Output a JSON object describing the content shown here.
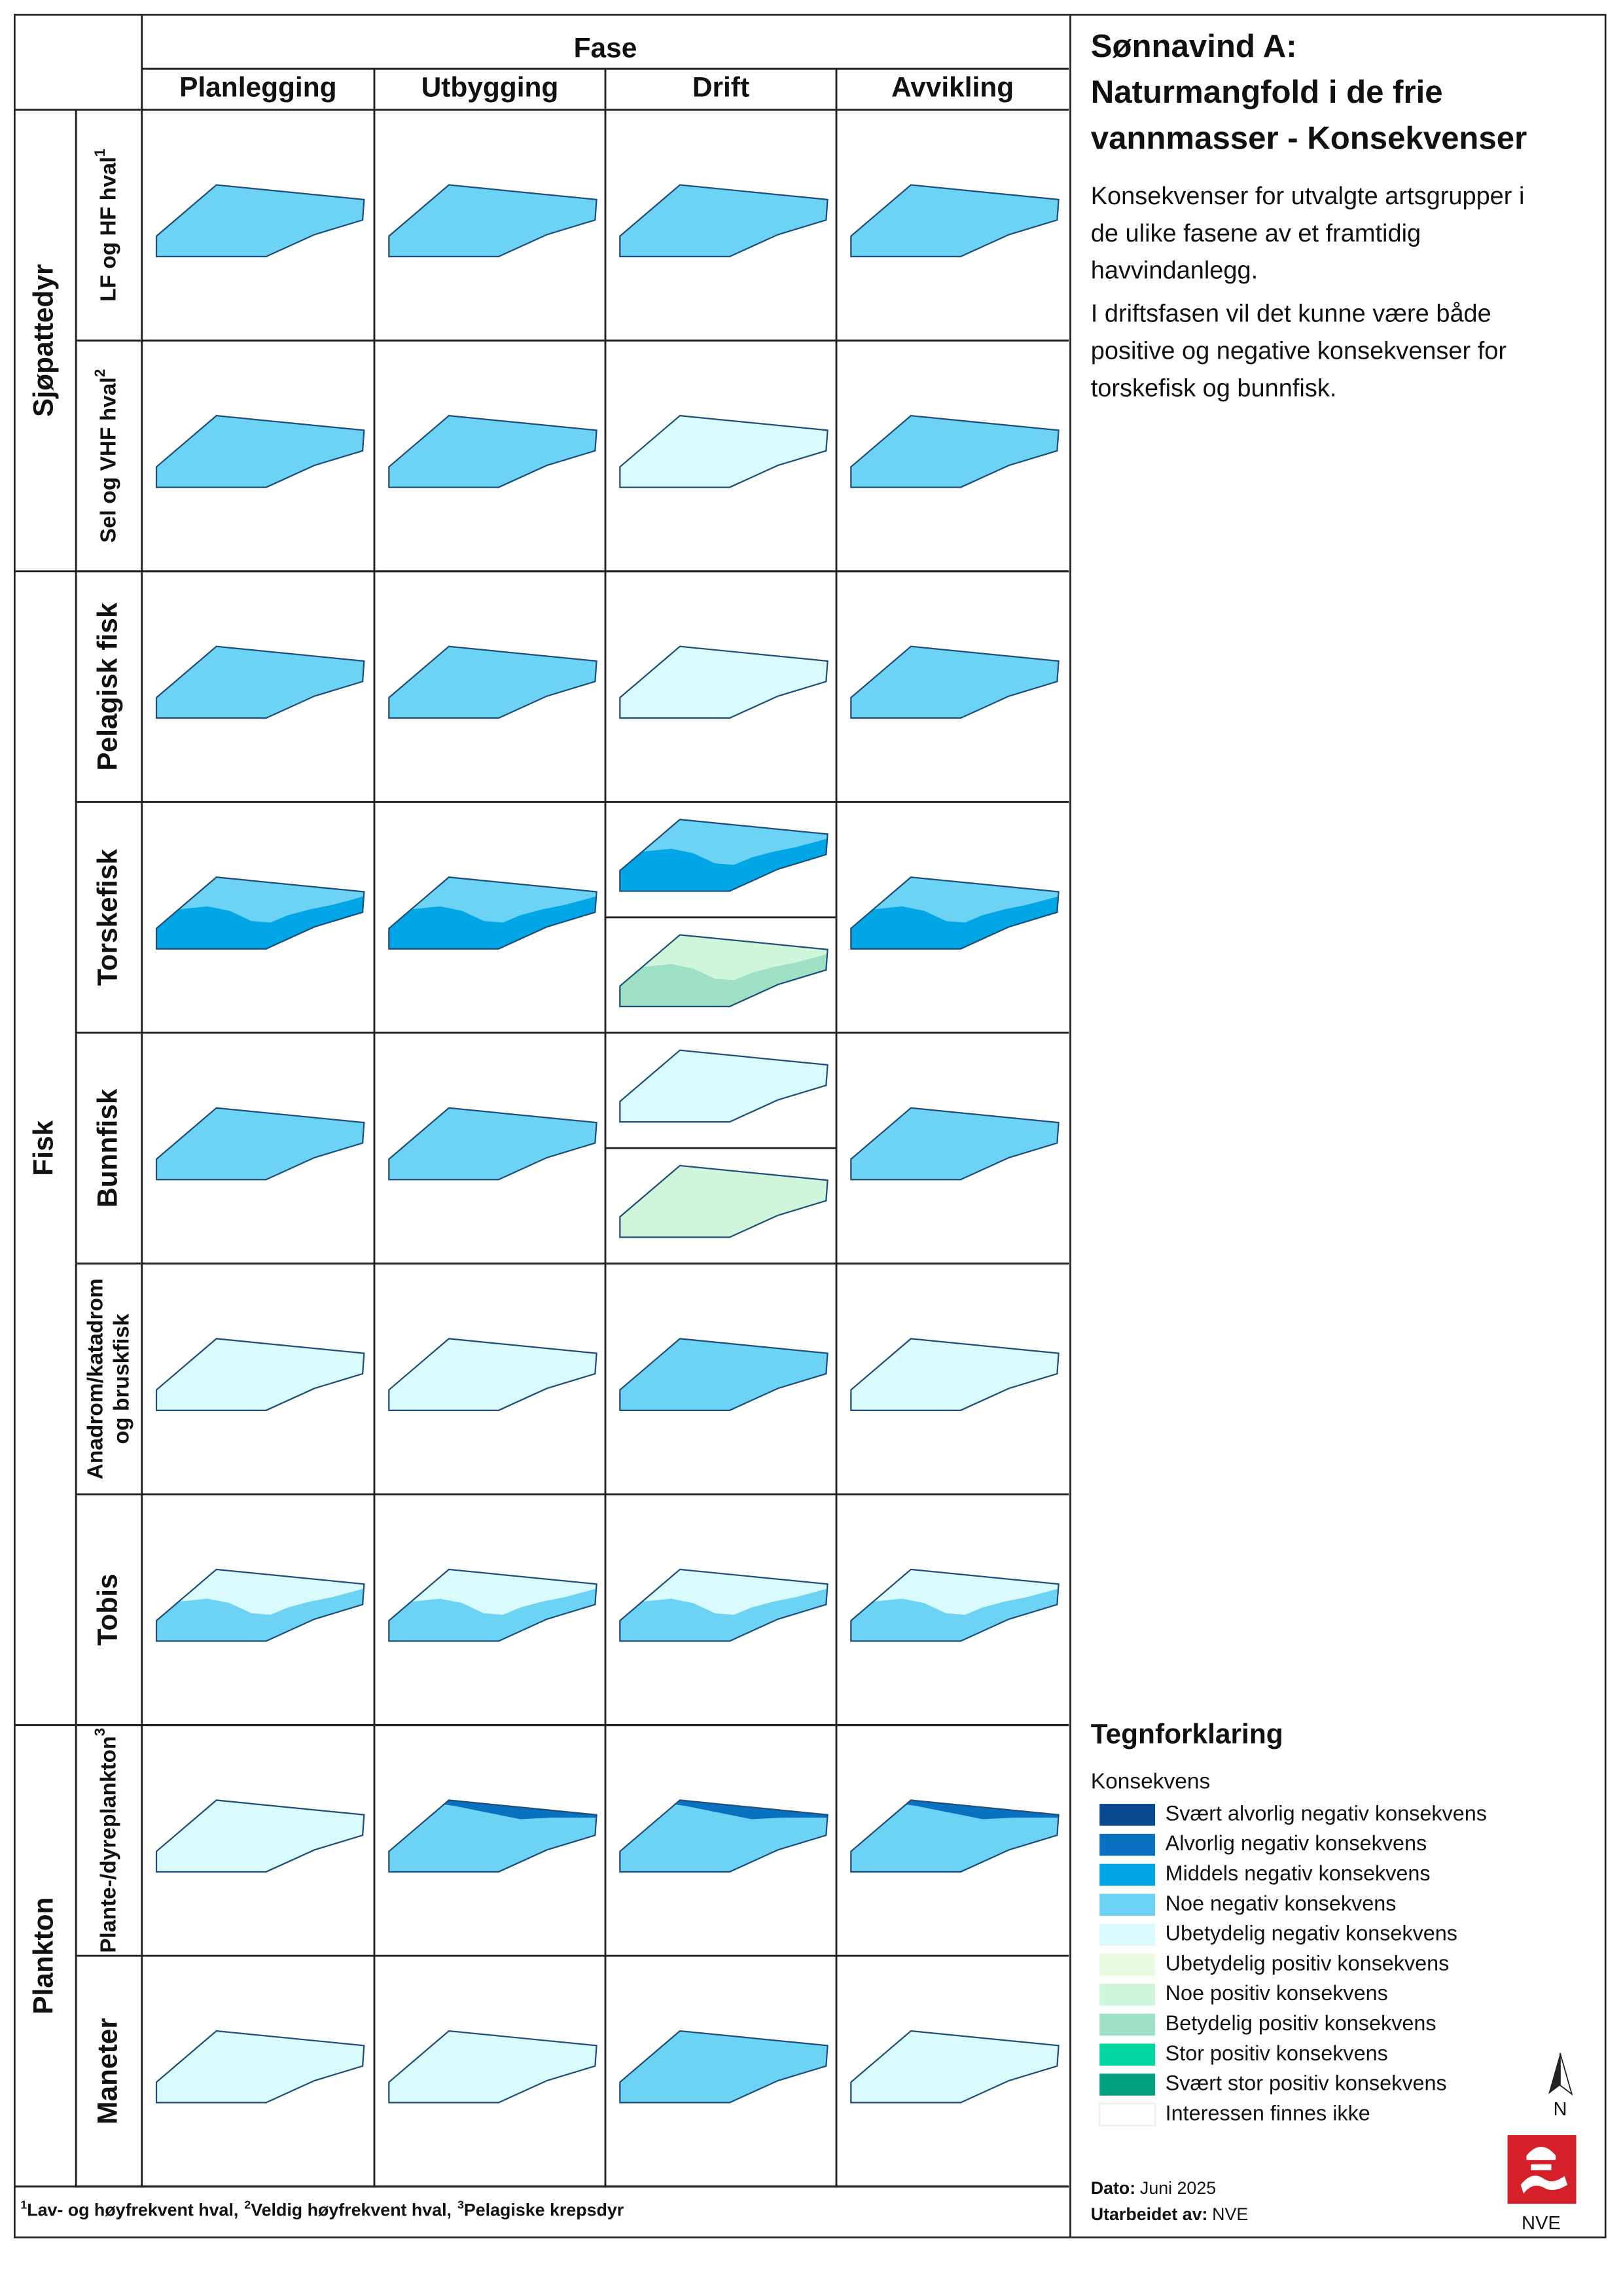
{
  "header": "Fase",
  "phases": [
    "Planlegging",
    "Utbygging",
    "Drift",
    "Avvikling"
  ],
  "groups": [
    {
      "label": "Sjøpattedyr",
      "rows": [
        {
          "lines": [
            "LF og HF hval"
          ],
          "note": "1",
          "cells": [
            [
              {
                "fill": "Noe negativ konsekvens"
              }
            ],
            [
              {
                "fill": "Noe negativ konsekvens"
              }
            ],
            [
              {
                "fill": "Noe negativ konsekvens"
              }
            ],
            [
              {
                "fill": "Noe negativ konsekvens"
              }
            ]
          ]
        },
        {
          "lines": [
            "Sel og VHF hval"
          ],
          "note": "2",
          "cells": [
            [
              {
                "fill": "Noe negativ konsekvens"
              }
            ],
            [
              {
                "fill": "Noe negativ konsekvens"
              }
            ],
            [
              {
                "fill": "Ubetydelig negativ konsekvens"
              }
            ],
            [
              {
                "fill": "Noe negativ konsekvens"
              }
            ]
          ]
        }
      ]
    },
    {
      "label": "Fisk",
      "rows": [
        {
          "lines": [
            "Pelagisk fisk"
          ],
          "cells": [
            [
              {
                "fill": "Noe negativ konsekvens"
              }
            ],
            [
              {
                "fill": "Noe negativ konsekvens"
              }
            ],
            [
              {
                "fill": "Ubetydelig negativ konsekvens"
              }
            ],
            [
              {
                "fill": "Noe negativ konsekvens"
              }
            ]
          ]
        },
        {
          "lines": [
            "Torskefisk"
          ],
          "cells": [
            [
              {
                "fill": "Middels negativ konsekvens",
                "upper": "Noe negativ konsekvens"
              }
            ],
            [
              {
                "fill": "Middels negativ konsekvens",
                "upper": "Noe negativ konsekvens"
              }
            ],
            [
              {
                "fill": "Middels negativ konsekvens",
                "upper": "Noe negativ konsekvens"
              },
              {
                "fill": "Betydelig positiv konsekvens",
                "upper": "Noe positiv konsekvens"
              }
            ],
            [
              {
                "fill": "Middels negativ konsekvens",
                "upper": "Noe negativ konsekvens"
              }
            ]
          ]
        },
        {
          "lines": [
            "Bunnfisk"
          ],
          "cells": [
            [
              {
                "fill": "Noe negativ konsekvens"
              }
            ],
            [
              {
                "fill": "Noe negativ konsekvens"
              }
            ],
            [
              {
                "fill": "Ubetydelig negativ konsekvens"
              },
              {
                "fill": "Noe positiv konsekvens"
              }
            ],
            [
              {
                "fill": "Noe negativ konsekvens"
              }
            ]
          ]
        },
        {
          "lines": [
            "Anadrom/katadrom",
            "og bruskfisk"
          ],
          "cells": [
            [
              {
                "fill": "Ubetydelig negativ konsekvens"
              }
            ],
            [
              {
                "fill": "Ubetydelig negativ konsekvens"
              }
            ],
            [
              {
                "fill": "Noe negativ konsekvens"
              }
            ],
            [
              {
                "fill": "Ubetydelig negativ konsekvens"
              }
            ]
          ]
        },
        {
          "lines": [
            "Tobis"
          ],
          "cells": [
            [
              {
                "fill": "Noe negativ konsekvens",
                "upper": "Ubetydelig negativ konsekvens"
              }
            ],
            [
              {
                "fill": "Noe negativ konsekvens",
                "upper": "Ubetydelig negativ konsekvens"
              }
            ],
            [
              {
                "fill": "Noe negativ konsekvens",
                "upper": "Ubetydelig negativ konsekvens"
              }
            ],
            [
              {
                "fill": "Noe negativ konsekvens",
                "upper": "Ubetydelig negativ konsekvens"
              }
            ]
          ]
        }
      ]
    },
    {
      "label": "Plankton",
      "rows": [
        {
          "lines": [
            "Plante-/dyreplankton"
          ],
          "note": "3",
          "cells": [
            [
              {
                "fill": "Ubetydelig negativ konsekvens"
              }
            ],
            [
              {
                "fill": "Noe negativ konsekvens",
                "edge": "Alvorlig negativ konsekvens"
              }
            ],
            [
              {
                "fill": "Noe negativ konsekvens",
                "edge": "Alvorlig negativ konsekvens"
              }
            ],
            [
              {
                "fill": "Noe negativ konsekvens",
                "edge": "Alvorlig negativ konsekvens"
              }
            ]
          ]
        },
        {
          "lines": [
            "Maneter"
          ],
          "cells": [
            [
              {
                "fill": "Ubetydelig negativ konsekvens"
              }
            ],
            [
              {
                "fill": "Ubetydelig negativ konsekvens"
              }
            ],
            [
              {
                "fill": "Noe negativ konsekvens"
              }
            ],
            [
              {
                "fill": "Ubetydelig negativ konsekvens"
              }
            ]
          ]
        }
      ]
    }
  ],
  "footnotes": [
    {
      "mark": "1",
      "text": "Lav- og høyfrekvent hval,"
    },
    {
      "mark": "2",
      "text": "Veldig høyfrekvent hval,"
    },
    {
      "mark": "3",
      "text": "Pelagiske krepsdyr"
    }
  ],
  "title_lines": [
    "Sønnavind A:",
    "Naturmangfold i de frie",
    "vannmasser - Konsekvenser"
  ],
  "paragraphs": [
    [
      "Konsekvenser for utvalgte artsgrupper i",
      "de ulike fasene av et framtidig",
      "havvindanlegg."
    ],
    [
      "I driftsfasen vil det kunne være både",
      "positive og negative konsekvenser for",
      "torskefisk og bunnfisk."
    ]
  ],
  "legend": {
    "title": "Tegnforklaring",
    "subtitle": "Konsekvens",
    "items": [
      {
        "label": "Svært alvorlig negativ konsekvens",
        "color": "#08488e"
      },
      {
        "label": "Alvorlig negativ konsekvens",
        "color": "#0a70c0"
      },
      {
        "label": "Middels negativ konsekvens",
        "color": "#00a6e6"
      },
      {
        "label": "Noe negativ konsekvens",
        "color": "#6dd3f5"
      },
      {
        "label": "Ubetydelig negativ konsekvens",
        "color": "#d9fbfd"
      },
      {
        "label": "Ubetydelig positiv konsekvens",
        "color": "#e8fbe0"
      },
      {
        "label": "Noe positiv konsekvens",
        "color": "#cff6da"
      },
      {
        "label": "Betydelig positiv konsekvens",
        "color": "#9de0c4"
      },
      {
        "label": "Stor positiv konsekvens",
        "color": "#00d6a0"
      },
      {
        "label": "Svært stor positiv konsekvens",
        "color": "#00a07e"
      },
      {
        "label": "Interessen finnes ikke",
        "color": "#ffffff"
      }
    ]
  },
  "north": "N",
  "date_label": "Dato:",
  "date": "Juni 2025",
  "author_label": "Utarbeidet av:",
  "author": "NVE",
  "logo_text": "NVE"
}
